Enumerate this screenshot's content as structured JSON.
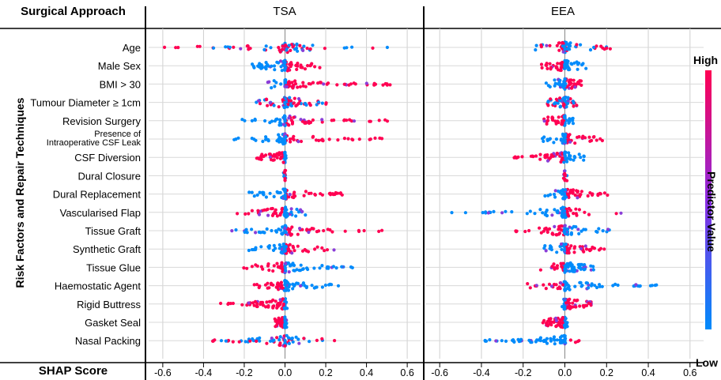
{
  "header": {
    "approach_label": "Surgical Approach"
  },
  "axis": {
    "y_title": "Risk Factors and Repair Techniques",
    "x_title": "SHAP Score"
  },
  "legend": {
    "high": "High",
    "low": "Low",
    "title": "Predictor Value",
    "color_high": "#ff0052",
    "color_low": "#008bfb"
  },
  "chart_data": [
    {
      "type": "scatter",
      "subtype": "beeswarm",
      "title": "TSA",
      "xlim": [
        -0.65,
        0.65
      ],
      "xticks": [
        "-0.6",
        "-0.4",
        "-0.2",
        "0.0",
        "0.2",
        "0.4",
        "0.6"
      ],
      "grid": true,
      "features": [
        {
          "name": "Age",
          "range": [
            -0.61,
            0.52
          ],
          "high_side": "both"
        },
        {
          "name": "Male Sex",
          "range": [
            -0.18,
            0.18
          ],
          "high_side": "positive"
        },
        {
          "name": "BMI > 30",
          "range": [
            -0.12,
            0.54
          ],
          "high_side": "positive"
        },
        {
          "name": "Tumour Diameter ≥ 1cm",
          "range": [
            -0.15,
            0.23
          ],
          "high_side": "center"
        },
        {
          "name": "Revision Surgery",
          "range": [
            -0.22,
            0.54
          ],
          "high_side": "positive"
        },
        {
          "name": "Presence of\nIntraoperative CSF Leak",
          "range": [
            -0.3,
            0.49
          ],
          "high_side": "positive"
        },
        {
          "name": "CSF Diversion",
          "range": [
            -0.14,
            0.01
          ],
          "high_side": "negative"
        },
        {
          "name": "Dural Closure",
          "range": [
            -0.01,
            0.01
          ],
          "high_side": "center"
        },
        {
          "name": "Dural Replacement",
          "range": [
            -0.18,
            0.3
          ],
          "high_side": "positive"
        },
        {
          "name": "Vascularised Flap",
          "range": [
            -0.24,
            0.12
          ],
          "high_side": "negative"
        },
        {
          "name": "Tissue Graft",
          "range": [
            -0.27,
            0.49
          ],
          "high_side": "positive"
        },
        {
          "name": "Synthetic Graft",
          "range": [
            -0.19,
            0.27
          ],
          "high_side": "positive"
        },
        {
          "name": "Tissue Glue",
          "range": [
            -0.21,
            0.35
          ],
          "high_side": "negative"
        },
        {
          "name": "Haemostatic Agent",
          "range": [
            -0.16,
            0.27
          ],
          "high_side": "negative"
        },
        {
          "name": "Rigid Buttress",
          "range": [
            -0.32,
            0.01
          ],
          "high_side": "negative"
        },
        {
          "name": "Gasket Seal",
          "range": [
            -0.05,
            0.01
          ],
          "high_side": "negative"
        },
        {
          "name": "Nasal Packing",
          "range": [
            -0.37,
            0.25
          ],
          "high_side": "center"
        }
      ]
    },
    {
      "type": "scatter",
      "subtype": "beeswarm",
      "title": "EEA",
      "xlim": [
        -0.65,
        0.65
      ],
      "xticks": [
        "-0.6",
        "-0.4",
        "-0.2",
        "0.0",
        "0.2",
        "0.4",
        "0.6"
      ],
      "grid": true,
      "features": [
        {
          "name": "Age",
          "range": [
            -0.17,
            0.23
          ],
          "high_side": "both"
        },
        {
          "name": "Male Sex",
          "range": [
            -0.12,
            0.11
          ],
          "high_side": "negative"
        },
        {
          "name": "BMI > 30",
          "range": [
            -0.09,
            0.08
          ],
          "high_side": "positive"
        },
        {
          "name": "Tumour Diameter ≥ 1cm",
          "range": [
            -0.1,
            0.06
          ],
          "high_side": "center"
        },
        {
          "name": "Revision Surgery",
          "range": [
            -0.1,
            0.04
          ],
          "high_side": "negative"
        },
        {
          "name": "Presence of\nIntraoperative CSF Leak",
          "range": [
            -0.11,
            0.19
          ],
          "high_side": "positive"
        },
        {
          "name": "CSF Diversion",
          "range": [
            -0.26,
            0.1
          ],
          "high_side": "negative"
        },
        {
          "name": "Dural Closure",
          "range": [
            -0.01,
            0.01
          ],
          "high_side": "center"
        },
        {
          "name": "Dural Replacement",
          "range": [
            -0.14,
            0.21
          ],
          "high_side": "positive"
        },
        {
          "name": "Vascularised Flap",
          "range": [
            -0.57,
            0.27
          ],
          "high_side": "positive"
        },
        {
          "name": "Tissue Graft",
          "range": [
            -0.27,
            0.23
          ],
          "high_side": "negative"
        },
        {
          "name": "Synthetic Graft",
          "range": [
            -0.1,
            0.2
          ],
          "high_side": "positive"
        },
        {
          "name": "Tissue Glue",
          "range": [
            -0.12,
            0.18
          ],
          "high_side": "negative"
        },
        {
          "name": "Haemostatic Agent",
          "range": [
            -0.19,
            0.48
          ],
          "high_side": "negative"
        },
        {
          "name": "Rigid Buttress",
          "range": [
            -0.02,
            0.13
          ],
          "high_side": "positive"
        },
        {
          "name": "Gasket Seal",
          "range": [
            -0.11,
            0.02
          ],
          "high_side": "negative"
        },
        {
          "name": "Nasal Packing",
          "range": [
            -0.39,
            0.07
          ],
          "high_side": "positive"
        }
      ]
    }
  ]
}
